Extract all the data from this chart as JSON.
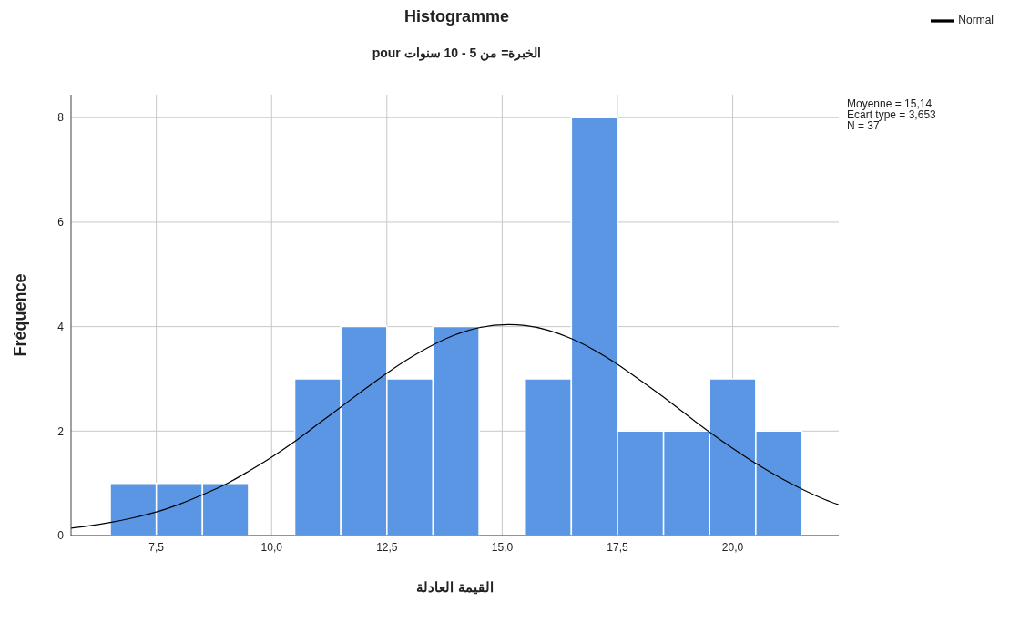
{
  "chart_data": {
    "type": "histogram",
    "title": "Histogramme",
    "subtitle": "pour الخبرة= من 5 - 10 سنوات",
    "xlabel": "القيمة العادلة",
    "ylabel": "Fréquence",
    "bins": [
      6.5,
      7.5,
      8.5,
      9.5,
      10.5,
      11.5,
      12.5,
      13.5,
      14.5,
      15.5,
      16.5,
      17.5,
      18.5,
      19.5,
      20.5,
      21.5
    ],
    "values": [
      1,
      1,
      1,
      0,
      3,
      4,
      3,
      4,
      0,
      3,
      8,
      2,
      2,
      3,
      2
    ],
    "color": "#5a96e3",
    "series": [
      {
        "name": "Normal",
        "type": "line",
        "color": "#000000",
        "x": [
          5.65,
          6,
          6.5,
          7,
          7.5,
          8,
          8.5,
          9,
          9.5,
          10,
          10.5,
          11,
          11.5,
          12,
          12.5,
          13,
          13.5,
          14,
          14.5,
          15.14,
          15.5,
          16,
          16.5,
          17,
          17.5,
          18,
          18.5,
          19,
          19.5,
          20,
          20.5,
          21,
          21.5,
          22,
          22.3
        ],
        "values": [
          0.14,
          0.18,
          0.25,
          0.34,
          0.45,
          0.6,
          0.78,
          0.98,
          1.23,
          1.5,
          1.8,
          2.13,
          2.46,
          2.79,
          3.11,
          3.4,
          3.65,
          3.85,
          3.98,
          4.04,
          4.02,
          3.93,
          3.77,
          3.55,
          3.28,
          2.97,
          2.65,
          2.31,
          1.98,
          1.67,
          1.38,
          1.12,
          0.89,
          0.69,
          0.59
        ]
      }
    ],
    "xlim": [
      5.65,
      22.3
    ],
    "ylim": [
      0,
      8.44
    ],
    "xticks": [
      {
        "value": 7.5,
        "label": "7,5"
      },
      {
        "value": 10,
        "label": "10,0"
      },
      {
        "value": 12.5,
        "label": "12,5"
      },
      {
        "value": 15,
        "label": "15,0"
      },
      {
        "value": 17.5,
        "label": "17,5"
      },
      {
        "value": 20,
        "label": "20,0"
      }
    ],
    "yticks": [
      0,
      2,
      4,
      6,
      8
    ],
    "grid": true,
    "legend": "top right",
    "marker": "none",
    "line_style": "solid",
    "annotations": [
      "Moyenne = 15,14",
      "Ecart type = 3,653",
      "N = 37"
    ]
  }
}
